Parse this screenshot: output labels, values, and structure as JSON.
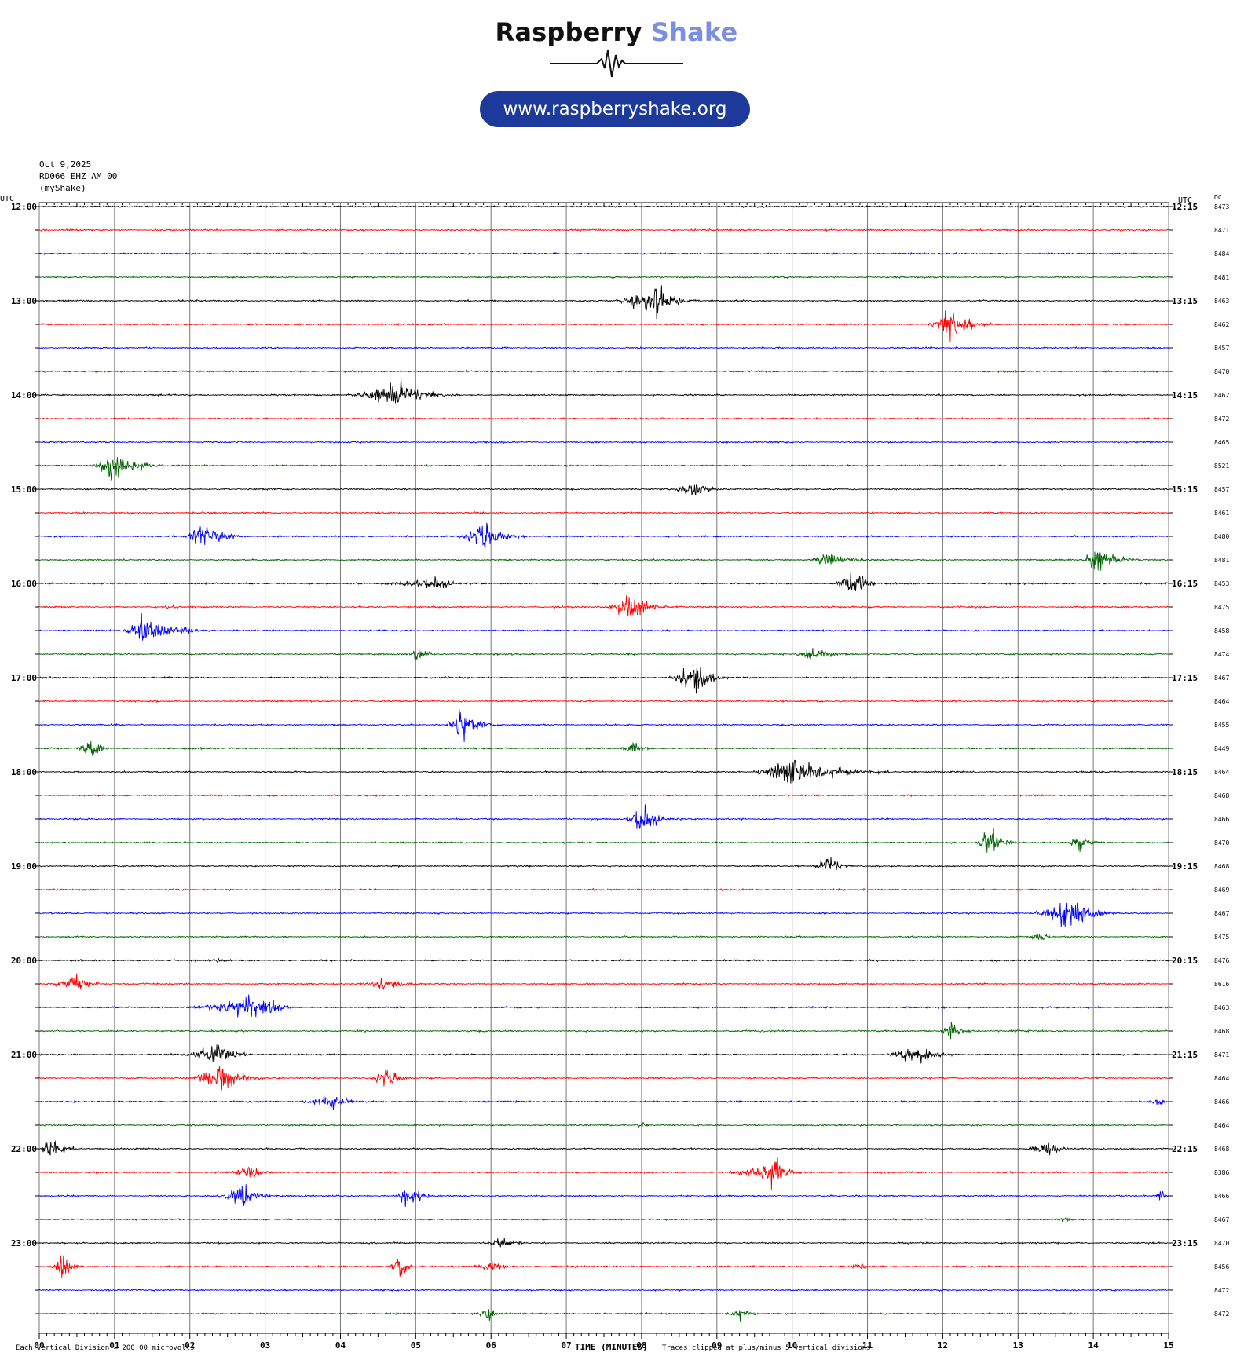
{
  "brand": {
    "title_part1": "Raspberry",
    "title_part2": "Shake",
    "url": "www.raspberryshake.org",
    "colors": {
      "title_dark": "#111111",
      "title_accent": "#7b8fe0",
      "pill": "#1d3a9a"
    }
  },
  "header": {
    "date": "Oct 9,2025",
    "station": "RD066 EHZ AM 00",
    "source": "(myShake)"
  },
  "footer": {
    "x_axis_title": "TIME (MINUTES)",
    "scale_note": "Each Vertical Division =  200.00 microvolts",
    "clip_note": "Traces clipped at plus/minus 5 vertical divisions"
  },
  "chart_data": {
    "type": "line",
    "chart_kind": "helicorder",
    "left_axis_title": "UTC",
    "right_axis_title": "UTC",
    "dc_header": "DC",
    "x_ticks": [
      "00",
      "01",
      "02",
      "03",
      "04",
      "05",
      "06",
      "07",
      "08",
      "09",
      "10",
      "11",
      "12",
      "13",
      "14",
      "15"
    ],
    "xlim": [
      0,
      15
    ],
    "trace_colors": [
      "#000000",
      "#ff0000",
      "#0000ff",
      "#006400"
    ],
    "grid": true,
    "left_labels": [
      "12:00",
      "13:00",
      "14:00",
      "15:00",
      "16:00",
      "17:00",
      "18:00",
      "19:00",
      "20:00",
      "21:00",
      "22:00",
      "23:00"
    ],
    "right_labels": [
      "12:15",
      "13:15",
      "14:15",
      "15:15",
      "16:15",
      "17:15",
      "18:15",
      "19:15",
      "20:15",
      "21:15",
      "22:15",
      "23:15"
    ],
    "dc_values": [
      "8473",
      "8471",
      "8484",
      "8481",
      "8463",
      "8462",
      "8457",
      "8470",
      "8462",
      "8472",
      "8465",
      "8521",
      "8457",
      "8461",
      "8480",
      "8481",
      "8453",
      "8475",
      "8458",
      "8474",
      "8467",
      "8464",
      "8455",
      "8449",
      "8464",
      "8468",
      "8466",
      "8470",
      "8468",
      "8469",
      "8467",
      "8475",
      "8476",
      "8616",
      "8463",
      "8468",
      "8471",
      "8464",
      "8466",
      "8464",
      "8468",
      "8386",
      "8466",
      "8467",
      "8470",
      "8456",
      "8472",
      "8472"
    ],
    "rows": 48,
    "minutes_per_row": 15,
    "events": [
      {
        "row": 5,
        "start_min": 11.7,
        "end_min": 12.8,
        "peak_min": 12.1,
        "amp_div": 5
      },
      {
        "row": 4,
        "start_min": 7.4,
        "end_min": 8.8,
        "peak_min": 8.2,
        "amp_div": 5
      },
      {
        "row": 8,
        "start_min": 3.9,
        "end_min": 5.6,
        "peak_min": 4.8,
        "amp_div": 5
      },
      {
        "row": 11,
        "start_min": 0.6,
        "end_min": 1.8,
        "peak_min": 1.0,
        "amp_div": 5
      },
      {
        "row": 12,
        "start_min": 8.3,
        "end_min": 9.2,
        "peak_min": 8.7,
        "amp_div": 3
      },
      {
        "row": 13,
        "start_min": 5.4,
        "end_min": 6.2,
        "peak_min": 5.8,
        "amp_div": 0.6
      },
      {
        "row": 14,
        "start_min": 1.8,
        "end_min": 2.8,
        "peak_min": 2.2,
        "amp_div": 5
      },
      {
        "row": 14,
        "start_min": 5.4,
        "end_min": 6.5,
        "peak_min": 5.9,
        "amp_div": 5
      },
      {
        "row": 15,
        "start_min": 13.8,
        "end_min": 14.8,
        "peak_min": 14.0,
        "amp_div": 5
      },
      {
        "row": 15,
        "start_min": 10.0,
        "end_min": 11.4,
        "peak_min": 10.5,
        "amp_div": 2
      },
      {
        "row": 16,
        "start_min": 4.2,
        "end_min": 6.0,
        "peak_min": 5.3,
        "amp_div": 2
      },
      {
        "row": 16,
        "start_min": 10.4,
        "end_min": 11.2,
        "peak_min": 10.9,
        "amp_div": 5
      },
      {
        "row": 17,
        "start_min": 7.4,
        "end_min": 8.4,
        "peak_min": 7.9,
        "amp_div": 5
      },
      {
        "row": 17,
        "start_min": 1.5,
        "end_min": 2.0,
        "peak_min": 1.8,
        "amp_div": 1
      },
      {
        "row": 18,
        "start_min": 1.0,
        "end_min": 2.4,
        "peak_min": 1.4,
        "amp_div": 5
      },
      {
        "row": 19,
        "start_min": 4.8,
        "end_min": 5.4,
        "peak_min": 5.0,
        "amp_div": 2.5
      },
      {
        "row": 19,
        "start_min": 9.8,
        "end_min": 11.0,
        "peak_min": 10.3,
        "amp_div": 2
      },
      {
        "row": 20,
        "start_min": 8.2,
        "end_min": 9.2,
        "peak_min": 8.7,
        "amp_div": 5
      },
      {
        "row": 22,
        "start_min": 5.3,
        "end_min": 6.2,
        "peak_min": 5.6,
        "amp_div": 5
      },
      {
        "row": 23,
        "start_min": 0.4,
        "end_min": 1.0,
        "peak_min": 0.7,
        "amp_div": 4
      },
      {
        "row": 23,
        "start_min": 7.6,
        "end_min": 8.3,
        "peak_min": 7.9,
        "amp_div": 2
      },
      {
        "row": 24,
        "start_min": 9.3,
        "end_min": 11.5,
        "peak_min": 10.0,
        "amp_div": 5
      },
      {
        "row": 26,
        "start_min": 7.7,
        "end_min": 8.6,
        "peak_min": 8.0,
        "amp_div": 5
      },
      {
        "row": 27,
        "start_min": 12.4,
        "end_min": 13.1,
        "peak_min": 12.6,
        "amp_div": 5
      },
      {
        "row": 27,
        "start_min": 13.6,
        "end_min": 14.2,
        "peak_min": 13.8,
        "amp_div": 3
      },
      {
        "row": 28,
        "start_min": 10.2,
        "end_min": 10.8,
        "peak_min": 10.5,
        "amp_div": 5
      },
      {
        "row": 30,
        "start_min": 13.0,
        "end_min": 14.5,
        "peak_min": 13.7,
        "amp_div": 5
      },
      {
        "row": 31,
        "start_min": 13.1,
        "end_min": 13.5,
        "peak_min": 13.3,
        "amp_div": 3
      },
      {
        "row": 32,
        "start_min": 2.2,
        "end_min": 2.6,
        "peak_min": 2.4,
        "amp_div": 1
      },
      {
        "row": 33,
        "start_min": 0.0,
        "end_min": 1.0,
        "peak_min": 0.5,
        "amp_div": 3
      },
      {
        "row": 33,
        "start_min": 4.0,
        "end_min": 5.1,
        "peak_min": 4.6,
        "amp_div": 2
      },
      {
        "row": 34,
        "start_min": 1.7,
        "end_min": 3.4,
        "peak_min": 3.0,
        "amp_div": 5
      },
      {
        "row": 35,
        "start_min": 11.9,
        "end_min": 12.5,
        "peak_min": 12.1,
        "amp_div": 3
      },
      {
        "row": 36,
        "start_min": 1.8,
        "end_min": 2.9,
        "peak_min": 2.4,
        "amp_div": 5
      },
      {
        "row": 36,
        "start_min": 11.0,
        "end_min": 12.3,
        "peak_min": 11.7,
        "amp_div": 3
      },
      {
        "row": 37,
        "start_min": 1.9,
        "end_min": 3.1,
        "peak_min": 2.4,
        "amp_div": 5
      },
      {
        "row": 37,
        "start_min": 4.3,
        "end_min": 5.0,
        "peak_min": 4.6,
        "amp_div": 4
      },
      {
        "row": 38,
        "start_min": 3.3,
        "end_min": 4.4,
        "peak_min": 3.9,
        "amp_div": 3
      },
      {
        "row": 38,
        "start_min": 14.6,
        "end_min": 15.0,
        "peak_min": 14.9,
        "amp_div": 1.5
      },
      {
        "row": 39,
        "start_min": 7.8,
        "end_min": 8.4,
        "peak_min": 8.0,
        "amp_div": 1
      },
      {
        "row": 40,
        "start_min": 0.0,
        "end_min": 0.6,
        "peak_min": 0.1,
        "amp_div": 5
      },
      {
        "row": 40,
        "start_min": 13.0,
        "end_min": 13.8,
        "peak_min": 13.4,
        "amp_div": 3
      },
      {
        "row": 41,
        "start_min": 2.4,
        "end_min": 3.2,
        "peak_min": 2.8,
        "amp_div": 3
      },
      {
        "row": 41,
        "start_min": 9.0,
        "end_min": 10.2,
        "peak_min": 9.8,
        "amp_div": 5
      },
      {
        "row": 42,
        "start_min": 2.2,
        "end_min": 3.3,
        "peak_min": 2.7,
        "amp_div": 4
      },
      {
        "row": 42,
        "start_min": 4.6,
        "end_min": 5.4,
        "peak_min": 4.9,
        "amp_div": 3
      },
      {
        "row": 42,
        "start_min": 14.8,
        "end_min": 15.0,
        "peak_min": 14.9,
        "amp_div": 4
      },
      {
        "row": 43,
        "start_min": 13.4,
        "end_min": 13.9,
        "peak_min": 13.6,
        "amp_div": 1
      },
      {
        "row": 44,
        "start_min": 5.8,
        "end_min": 6.6,
        "peak_min": 6.2,
        "amp_div": 2
      },
      {
        "row": 45,
        "start_min": 0.1,
        "end_min": 0.6,
        "peak_min": 0.3,
        "amp_div": 5
      },
      {
        "row": 45,
        "start_min": 4.6,
        "end_min": 5.0,
        "peak_min": 4.8,
        "amp_div": 5
      },
      {
        "row": 45,
        "start_min": 5.6,
        "end_min": 6.5,
        "peak_min": 6.0,
        "amp_div": 2
      },
      {
        "row": 45,
        "start_min": 10.7,
        "end_min": 11.1,
        "peak_min": 10.9,
        "amp_div": 1.5
      },
      {
        "row": 47,
        "start_min": 5.6,
        "end_min": 6.3,
        "peak_min": 6.0,
        "amp_div": 2
      },
      {
        "row": 47,
        "start_min": 9.0,
        "end_min": 9.7,
        "peak_min": 9.3,
        "amp_div": 2
      }
    ]
  }
}
